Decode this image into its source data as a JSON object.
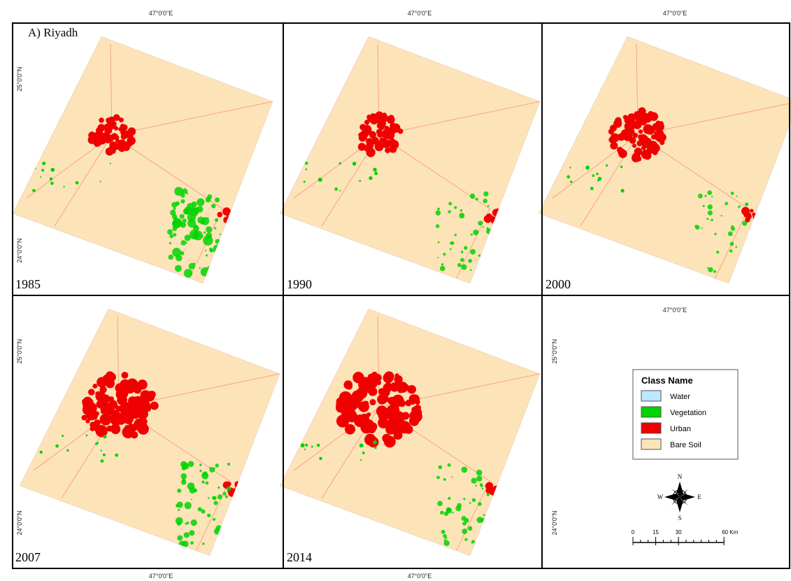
{
  "title": "A) Riyadh",
  "panels": [
    {
      "year": "1985"
    },
    {
      "year": "1990"
    },
    {
      "year": "2000"
    },
    {
      "year": "2007"
    },
    {
      "year": "2014"
    }
  ],
  "graticule": {
    "longitude": "47°0'0\"E",
    "latitudes": [
      "25°0'0\"N",
      "24°0'0\"N"
    ]
  },
  "legend": {
    "title": "Class Name",
    "items": [
      {
        "name": "Water",
        "color": "#bee8ff"
      },
      {
        "name": "Vegetation",
        "color": "#00d400"
      },
      {
        "name": "Urban",
        "color": "#f00000"
      },
      {
        "name": "Bare Soil",
        "color": "#fde3b8"
      }
    ]
  },
  "compass": {
    "n": "N",
    "s": "S",
    "e": "E",
    "w": "W"
  },
  "scale_bar": {
    "ticks": [
      0,
      15,
      30,
      {
        "value": 60,
        "label": "60 Km"
      }
    ]
  }
}
